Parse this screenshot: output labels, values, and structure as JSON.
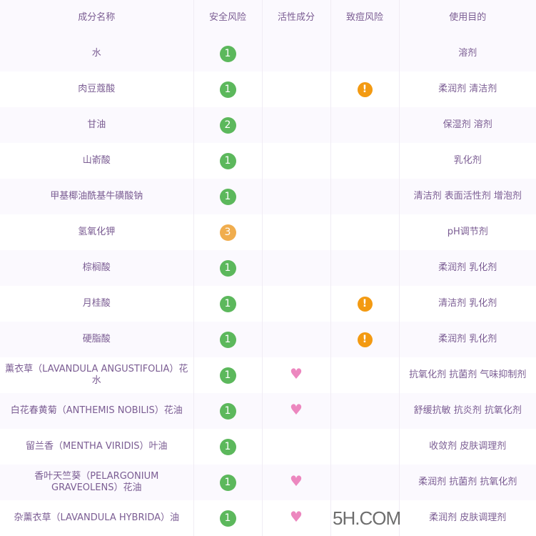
{
  "columns": [
    "成分名称",
    "安全风险",
    "活性成分",
    "致痘风险",
    "使用目的"
  ],
  "colors": {
    "1": "#5cb85c",
    "2": "#5cb85c",
    "3": "#f0ad4e"
  },
  "rows": [
    {
      "name": "水",
      "safety": "1",
      "active": false,
      "acne": false,
      "purpose": "溶剂"
    },
    {
      "name": "肉豆蔻酸",
      "safety": "1",
      "active": false,
      "acne": true,
      "purpose": "柔润剂 清洁剂"
    },
    {
      "name": "甘油",
      "safety": "2",
      "active": false,
      "acne": false,
      "purpose": "保湿剂 溶剂"
    },
    {
      "name": "山嵛酸",
      "safety": "1",
      "active": false,
      "acne": false,
      "purpose": "乳化剂"
    },
    {
      "name": "甲基椰油酰基牛磺酸钠",
      "safety": "1",
      "active": false,
      "acne": false,
      "purpose": "清洁剂 表面活性剂 增泡剂"
    },
    {
      "name": "氢氧化钾",
      "safety": "3",
      "active": false,
      "acne": false,
      "purpose": "pH调节剂"
    },
    {
      "name": "棕榈酸",
      "safety": "1",
      "active": false,
      "acne": false,
      "purpose": "柔润剂 乳化剂"
    },
    {
      "name": "月桂酸",
      "safety": "1",
      "active": false,
      "acne": true,
      "purpose": "清洁剂 乳化剂"
    },
    {
      "name": "硬脂酸",
      "safety": "1",
      "active": false,
      "acne": true,
      "purpose": "柔润剂 乳化剂"
    },
    {
      "name": "薰衣草（LAVANDULA ANGUSTIFOLIA）花水",
      "safety": "1",
      "active": true,
      "acne": false,
      "purpose": "抗氧化剂 抗菌剂 气味抑制剂"
    },
    {
      "name": "白花春黄菊（ANTHEMIS NOBILIS）花油",
      "safety": "1",
      "active": true,
      "acne": false,
      "purpose": "舒缓抗敏 抗炎剂 抗氧化剂"
    },
    {
      "name": "留兰香（MENTHA VIRIDIS）叶油",
      "safety": "1",
      "active": false,
      "acne": false,
      "purpose": "收敛剂 皮肤调理剂"
    },
    {
      "name": "香叶天竺葵（PELARGONIUM GRAVEOLENS）花油",
      "safety": "1",
      "active": true,
      "acne": false,
      "purpose": "柔润剂 抗菌剂 抗氧化剂"
    },
    {
      "name": "杂薰衣草（LAVANDULA HYBRIDA）油",
      "safety": "1",
      "active": true,
      "acne": false,
      "purpose": "柔润剂 皮肤调理剂"
    }
  ],
  "watermark": "5H.COM"
}
